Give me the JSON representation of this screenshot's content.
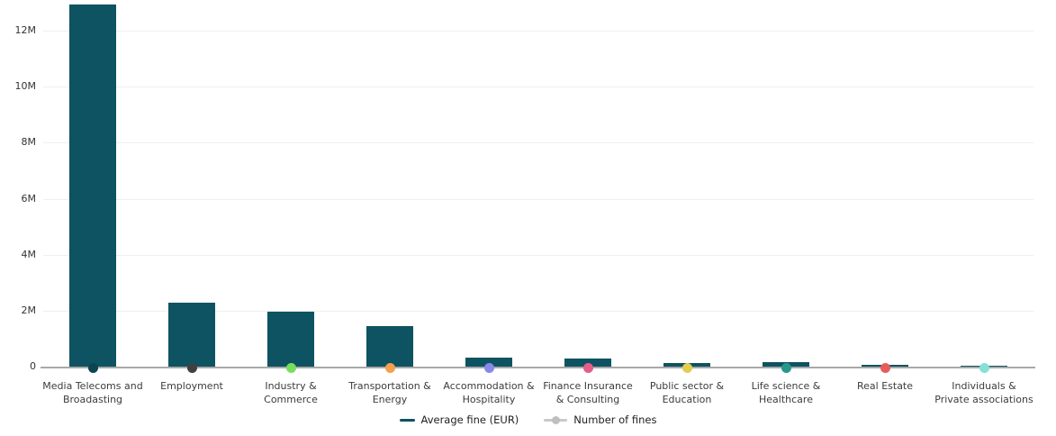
{
  "chart_data": {
    "type": "bar",
    "title": "",
    "xlabel": "",
    "ylabel": "",
    "categories": [
      "Media Telecoms and\nBroadasting",
      "Employment",
      "Industry &\nCommerce",
      "Transportation &\nEnergy",
      "Accommodation &\nHospitality",
      "Finance Insurance\n& Consulting",
      "Public sector &\nEducation",
      "Life science &\nHealthcare",
      "Real Estate",
      "Individuals &\nPrivate associations"
    ],
    "series": [
      {
        "name": "Average fine (EUR)",
        "type": "bar",
        "color": "#0d5361",
        "values": [
          12950000,
          2300000,
          1970000,
          1450000,
          310000,
          290000,
          130000,
          160000,
          55000,
          25000
        ]
      },
      {
        "name": "Number of fines",
        "type": "scatter",
        "values": [
          0,
          0,
          0,
          0,
          0,
          0,
          0,
          0,
          0,
          0
        ],
        "marker_colors": [
          "#0b4552",
          "#404040",
          "#79de5d",
          "#f4a04f",
          "#8689e9",
          "#e85d88",
          "#e2cd50",
          "#27998c",
          "#e65c5c",
          "#85e1d5"
        ]
      }
    ],
    "ylim": [
      0,
      13000000
    ],
    "yticks": [
      {
        "label": "0",
        "value": 0
      },
      {
        "label": "2M",
        "value": 2000000
      },
      {
        "label": "4M",
        "value": 4000000
      },
      {
        "label": "6M",
        "value": 6000000
      },
      {
        "label": "8M",
        "value": 8000000
      },
      {
        "label": "10M",
        "value": 10000000
      },
      {
        "label": "12M",
        "value": 12000000
      }
    ],
    "grid": true,
    "legend_position": "bottom"
  },
  "legend": {
    "items": [
      {
        "label": "Average fine (EUR)",
        "color": "#0d5361",
        "marker": "line"
      },
      {
        "label": "Number of fines",
        "color": "#c9c9c9",
        "dot_color": "#bfbfbf",
        "marker": "line-dot"
      }
    ]
  },
  "colors": {
    "bar": "#0d5361",
    "axis_line": "#a8a8a8",
    "gridline": "#efefef",
    "tick_text": "#333333",
    "category_text": "#3c3c3c",
    "background": "#ffffff"
  }
}
